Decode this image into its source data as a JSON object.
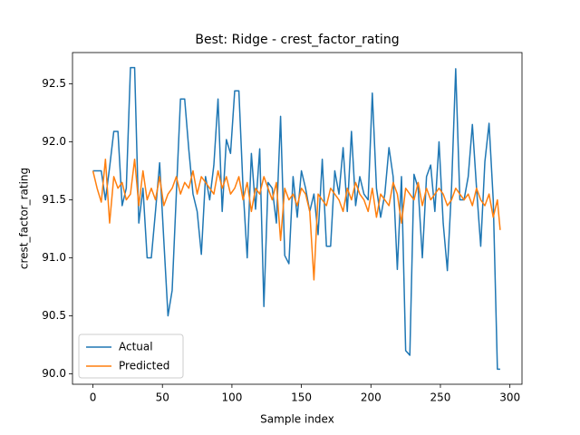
{
  "chart_data": {
    "type": "line",
    "title": "Best: Ridge - crest_factor_rating",
    "x_label": "Sample index",
    "y_label": "crest_factor_rating",
    "x": [
      0,
      3,
      6,
      9,
      12,
      15,
      18,
      21,
      24,
      27,
      30,
      33,
      36,
      39,
      42,
      45,
      48,
      51,
      54,
      57,
      60,
      63,
      66,
      69,
      72,
      75,
      78,
      81,
      84,
      87,
      90,
      93,
      96,
      99,
      102,
      105,
      108,
      111,
      114,
      117,
      120,
      123,
      126,
      129,
      132,
      135,
      138,
      141,
      144,
      147,
      150,
      153,
      156,
      159,
      162,
      165,
      168,
      171,
      174,
      177,
      180,
      183,
      186,
      189,
      192,
      195,
      198,
      201,
      204,
      207,
      210,
      213,
      216,
      219,
      222,
      225,
      228,
      231,
      234,
      237,
      240,
      243,
      246,
      249,
      252,
      255,
      258,
      261,
      264,
      267,
      270,
      273,
      276,
      279,
      282,
      285,
      288,
      291,
      293
    ],
    "series": [
      {
        "name": "Actual",
        "color": "#1f77b4",
        "values": [
          91.75,
          91.75,
          91.75,
          91.5,
          91.78,
          92.09,
          92.09,
          91.45,
          91.6,
          92.64,
          92.64,
          91.3,
          91.6,
          91.0,
          91.0,
          91.4,
          91.82,
          91.15,
          90.5,
          90.72,
          91.55,
          92.37,
          92.37,
          91.93,
          91.55,
          91.4,
          91.03,
          91.7,
          91.5,
          91.8,
          92.37,
          91.4,
          92.02,
          91.9,
          92.44,
          92.44,
          91.6,
          91.0,
          91.9,
          91.42,
          91.94,
          90.58,
          91.65,
          91.6,
          91.3,
          92.22,
          91.02,
          90.95,
          91.7,
          91.35,
          91.75,
          91.6,
          91.4,
          91.55,
          91.2,
          91.85,
          91.1,
          91.1,
          91.75,
          91.55,
          91.95,
          91.4,
          92.09,
          91.45,
          91.7,
          91.55,
          91.5,
          92.42,
          91.6,
          91.35,
          91.55,
          91.95,
          91.7,
          90.9,
          91.7,
          90.2,
          90.16,
          91.72,
          91.6,
          91.0,
          91.7,
          91.8,
          91.4,
          92.0,
          91.3,
          90.89,
          91.6,
          92.63,
          91.5,
          91.5,
          91.7,
          92.15,
          91.6,
          91.1,
          91.83,
          92.16,
          91.5,
          90.04,
          90.04
        ]
      },
      {
        "name": "Predicted",
        "color": "#ff7f0e",
        "values": [
          91.75,
          91.6,
          91.48,
          91.85,
          91.3,
          91.7,
          91.6,
          91.65,
          91.5,
          91.55,
          91.85,
          91.45,
          91.75,
          91.5,
          91.6,
          91.5,
          91.7,
          91.45,
          91.55,
          91.6,
          91.7,
          91.55,
          91.65,
          91.6,
          91.75,
          91.55,
          91.7,
          91.65,
          91.6,
          91.55,
          91.75,
          91.6,
          91.7,
          91.55,
          91.6,
          91.7,
          91.5,
          91.65,
          91.4,
          91.6,
          91.55,
          91.7,
          91.6,
          91.5,
          91.65,
          91.15,
          91.6,
          91.5,
          91.55,
          91.45,
          91.6,
          91.55,
          91.4,
          90.81,
          91.55,
          91.5,
          91.45,
          91.6,
          91.55,
          91.5,
          91.4,
          91.6,
          91.5,
          91.65,
          91.55,
          91.5,
          91.4,
          91.6,
          91.35,
          91.55,
          91.5,
          91.45,
          91.65,
          91.55,
          91.3,
          91.6,
          91.55,
          91.5,
          91.65,
          91.45,
          91.6,
          91.5,
          91.55,
          91.6,
          91.55,
          91.45,
          91.5,
          91.6,
          91.55,
          91.5,
          91.55,
          91.45,
          91.6,
          91.5,
          91.45,
          91.55,
          91.35,
          91.5,
          91.24
        ]
      }
    ],
    "xlim": [
      -14.7,
      308.7
    ],
    "ylim": [
      89.91,
      92.77
    ],
    "xticks": [
      0,
      50,
      100,
      150,
      200,
      250,
      300
    ],
    "yticks": [
      {
        "value": 90,
        "label": "90.0"
      },
      {
        "value": 90.5,
        "label": "90.5"
      },
      {
        "value": 91,
        "label": "91.0"
      },
      {
        "value": 91.5,
        "label": "91.5"
      },
      {
        "value": 92,
        "label": "92.0"
      },
      {
        "value": 92.5,
        "label": "92.5"
      }
    ],
    "legend": "lower left"
  }
}
